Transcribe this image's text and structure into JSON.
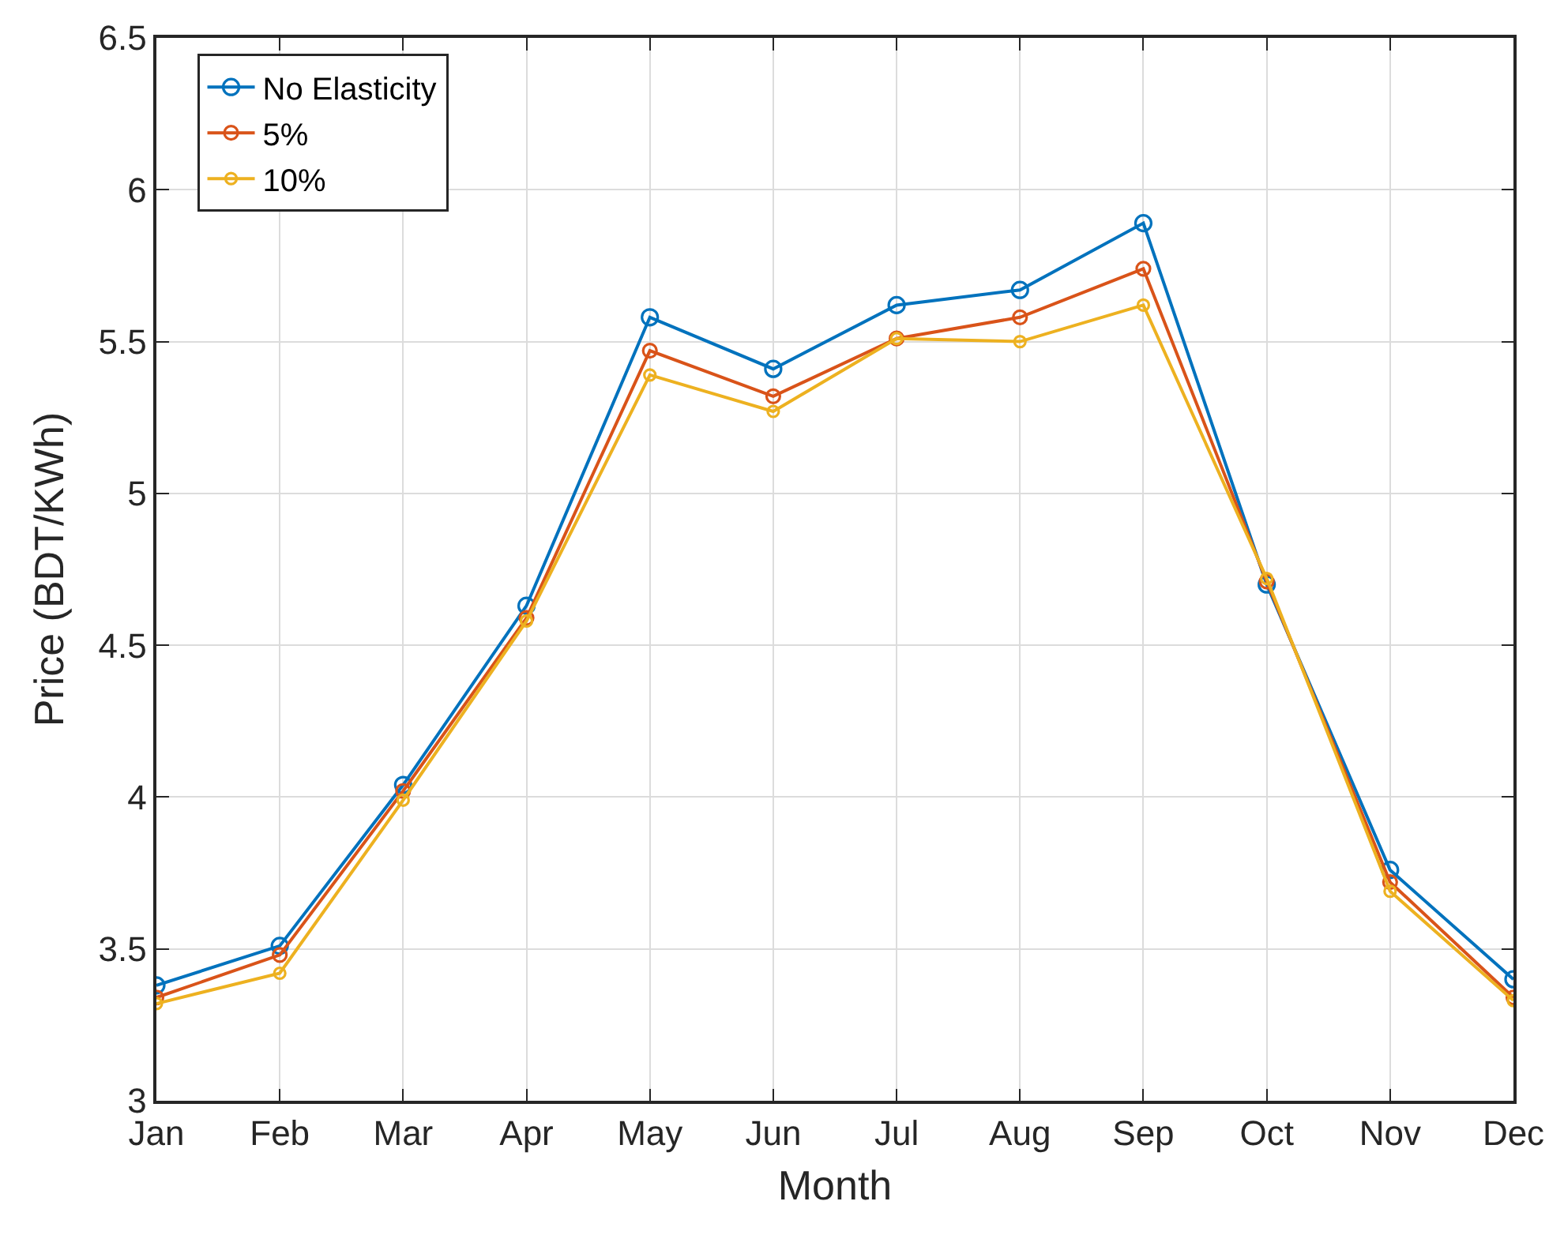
{
  "chart_data": {
    "type": "line",
    "xlabel": "Month",
    "ylabel": "Price (BDT/KWh)",
    "categories": [
      "Jan",
      "Feb",
      "Mar",
      "Apr",
      "May",
      "Jun",
      "Jul",
      "Aug",
      "Sep",
      "Oct",
      "Nov",
      "Dec"
    ],
    "series": [
      {
        "name": "No Elasticity",
        "color": "#0072bd",
        "values": [
          3.38,
          3.51,
          4.04,
          4.63,
          5.58,
          5.41,
          5.62,
          5.67,
          5.89,
          4.7,
          3.76,
          3.4
        ]
      },
      {
        "name": "5%",
        "color": "#d95319",
        "values": [
          3.34,
          3.48,
          4.02,
          4.59,
          5.47,
          5.32,
          5.51,
          5.58,
          5.74,
          4.71,
          3.72,
          3.34
        ]
      },
      {
        "name": "10%",
        "color": "#edb120",
        "values": [
          3.32,
          3.42,
          3.99,
          4.58,
          5.39,
          5.27,
          5.51,
          5.5,
          5.62,
          4.72,
          3.69,
          3.33
        ]
      }
    ],
    "ylim": [
      3,
      6.5
    ],
    "yticks": [
      3,
      3.5,
      4,
      4.5,
      5,
      5.5,
      6,
      6.5
    ],
    "grid": true,
    "legend": "top left",
    "marker": "circle",
    "line_style": "solid"
  }
}
